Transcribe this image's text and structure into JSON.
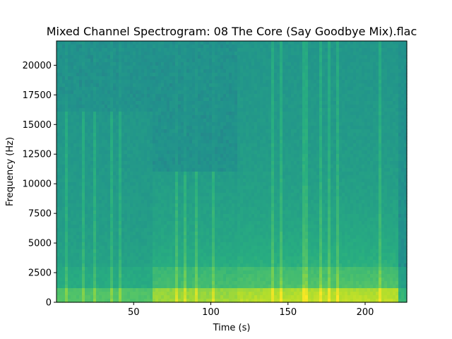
{
  "chart_data": {
    "type": "heatmap",
    "title": "Mixed Channel Spectrogram: 08 The Core (Say Goodbye Mix).flac",
    "xlabel": "Time (s)",
    "ylabel": "Frequency (Hz)",
    "xlim": [
      0,
      227
    ],
    "ylim": [
      0,
      22050
    ],
    "x_ticks": [
      50,
      100,
      150,
      200
    ],
    "y_ticks": [
      0,
      2500,
      5000,
      7500,
      10000,
      12500,
      15000,
      17500,
      20000
    ],
    "colormap": "viridis",
    "low_color": "#21918c",
    "high_color": "#b5de2b",
    "segments": [
      {
        "start": 0,
        "end": 63,
        "level": 0.28,
        "high_freq_cutoff": 16000
      },
      {
        "start": 63,
        "end": 117,
        "level": 0.5,
        "high_freq_cutoff": 11000
      },
      {
        "start": 117,
        "end": 158,
        "level": 0.56,
        "high_freq_cutoff": 22050
      },
      {
        "start": 158,
        "end": 222,
        "level": 0.58,
        "high_freq_cutoff": 22050
      },
      {
        "start": 222,
        "end": 227,
        "level": 0.15,
        "high_freq_cutoff": 3000
      }
    ]
  }
}
